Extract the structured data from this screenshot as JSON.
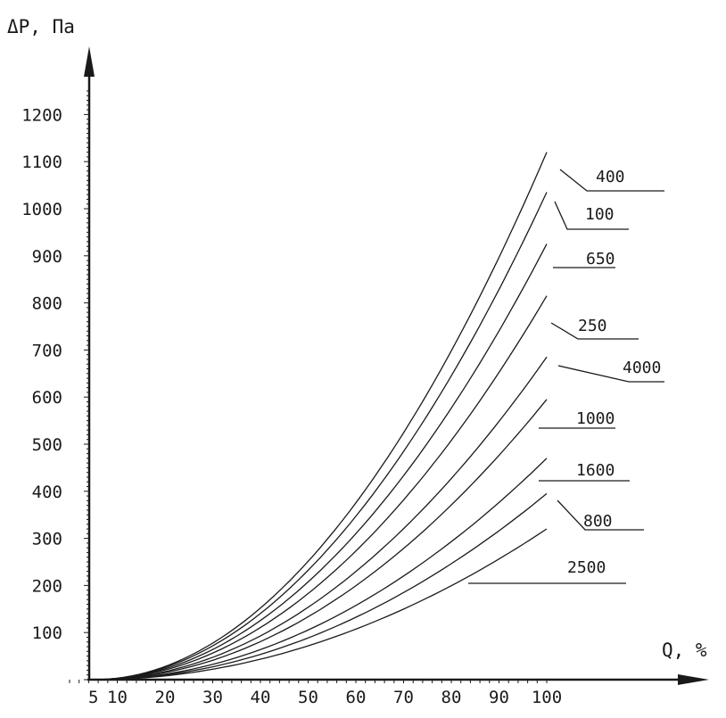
{
  "chart_data": {
    "type": "line",
    "title": "",
    "ylabel": "ΔP, Па",
    "xlabel": "Q, %",
    "x_ticks": [
      5,
      10,
      20,
      30,
      40,
      50,
      60,
      70,
      80,
      90,
      100
    ],
    "x_tick_labels": [
      "5",
      "10",
      "20",
      "30",
      "40",
      "50",
      "60",
      "70",
      "80",
      "90",
      "100"
    ],
    "y_ticks": [
      100,
      200,
      300,
      400,
      500,
      600,
      700,
      800,
      900,
      1000,
      1100,
      1200
    ],
    "y_tick_labels": [
      "100",
      "200",
      "300",
      "400",
      "500",
      "600",
      "700",
      "800",
      "900",
      "1000",
      "1100",
      "1200"
    ],
    "xlim": [
      0,
      100
    ],
    "ylim": [
      0,
      1200
    ],
    "grid": false,
    "legend": "none",
    "series": [
      {
        "name": "400",
        "x": [
          5,
          100
        ],
        "y": [
          0,
          1120
        ]
      },
      {
        "name": "100",
        "x": [
          5,
          100
        ],
        "y": [
          0,
          1035
        ]
      },
      {
        "name": "650",
        "x": [
          5,
          100
        ],
        "y": [
          0,
          925
        ]
      },
      {
        "name": "250",
        "x": [
          5,
          100
        ],
        "y": [
          0,
          815
        ]
      },
      {
        "name": "4000",
        "x": [
          5,
          100
        ],
        "y": [
          0,
          685
        ]
      },
      {
        "name": "1000",
        "x": [
          5,
          100
        ],
        "y": [
          0,
          595
        ]
      },
      {
        "name": "1600",
        "x": [
          5,
          100
        ],
        "y": [
          0,
          470
        ]
      },
      {
        "name": "800",
        "x": [
          5,
          100
        ],
        "y": [
          0,
          395
        ]
      },
      {
        "name": "2500",
        "x": [
          5,
          100
        ],
        "y": [
          0,
          320
        ]
      }
    ],
    "colors": {
      "ink": "#1a1a1a",
      "background": "#ffffff"
    }
  }
}
